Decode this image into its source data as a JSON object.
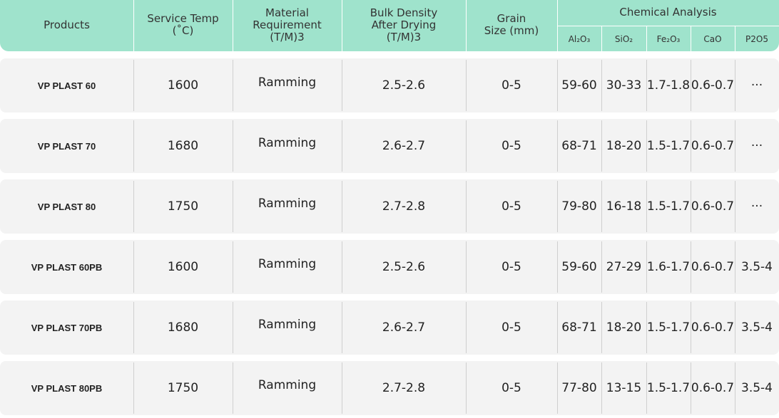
{
  "table": {
    "header": [
      "Products",
      "Service Temp\n(˚C)",
      "Material\nRequirement\n(T/M)3",
      "Bulk Density\nAfter Drying\n(T/M)3",
      "Grain\nSize (mm)"
    ],
    "group": "Chemical Analysis",
    "subheader": [
      "Al₂O₃",
      "SiO₂",
      "Fe₂O₃",
      "CaO",
      "P2O5"
    ],
    "rows": [
      [
        "VP PLAST 60",
        "1600",
        "Ramming",
        "2.5-2.6",
        "0-5",
        "59-60",
        "30-33",
        "1.7-1.8",
        "0.6-0.7",
        "···"
      ],
      [
        "VP PLAST 70",
        "1680",
        "Ramming",
        "2.6-2.7",
        "0-5",
        "68-71",
        "18-20",
        "1.5-1.7",
        "0.6-0.7",
        "···"
      ],
      [
        "VP PLAST 80",
        "1750",
        "Ramming",
        "2.7-2.8",
        "0-5",
        "79-80",
        "16-18",
        "1.5-1.7",
        "0.6-0.7",
        "···"
      ],
      [
        "VP PLAST 60PB",
        "1600",
        "Ramming",
        "2.5-2.6",
        "0-5",
        "59-60",
        "27-29",
        "1.6-1.7",
        "0.6-0.7",
        "3.5-4"
      ],
      [
        "VP PLAST 70PB",
        "1680",
        "Ramming",
        "2.6-2.7",
        "0-5",
        "68-71",
        "18-20",
        "1.5-1.7",
        "0.6-0.7",
        "3.5-4"
      ],
      [
        "VP PLAST 80PB",
        "1750",
        "Ramming",
        "2.7-2.8",
        "0-5",
        "77-80",
        "13-15",
        "1.5-1.7",
        "0.6-0.7",
        "3.5-4"
      ]
    ]
  }
}
